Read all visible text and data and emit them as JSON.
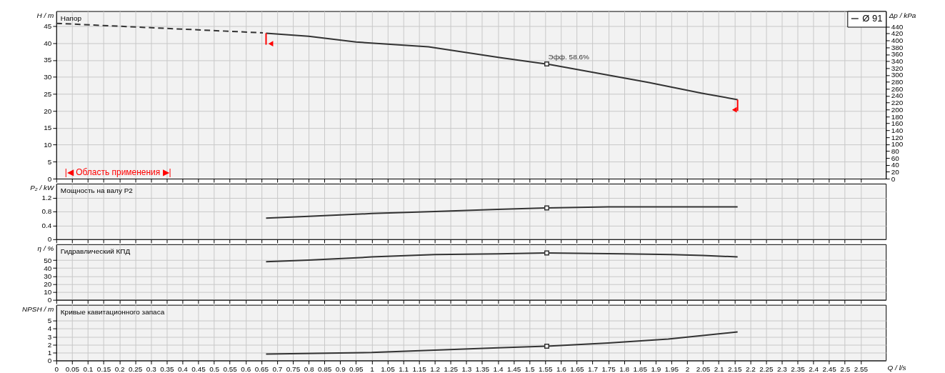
{
  "chart_data": [
    {
      "type": "line",
      "title": "Напор",
      "ylabel": "H / m",
      "y2label": "Δp / kPa",
      "xlim": [
        0,
        2.63
      ],
      "ylim": [
        0,
        49.4
      ],
      "y2lim": [
        0,
        485
      ],
      "yticks": [
        0,
        5,
        10,
        15,
        20,
        25,
        30,
        35,
        40,
        45
      ],
      "y2ticks": [
        0,
        20,
        40,
        60,
        80,
        100,
        120,
        140,
        160,
        180,
        200,
        220,
        240,
        260,
        280,
        300,
        320,
        340,
        360,
        380,
        400,
        420,
        440
      ],
      "xticks": [
        0,
        0.05,
        0.1,
        0.15,
        0.2,
        0.25,
        0.3,
        0.35,
        0.4,
        0.45,
        0.5,
        0.55,
        0.6,
        0.65,
        0.7,
        0.75,
        0.8,
        0.85,
        0.9,
        0.95,
        1,
        1.05,
        1.1,
        1.15,
        1.2,
        1.25,
        1.3,
        1.35,
        1.4,
        1.45,
        1.5,
        1.55,
        1.6,
        1.65,
        1.7,
        1.75,
        1.8,
        1.85,
        1.9,
        1.95,
        2,
        2.05,
        2.1,
        2.15,
        2.2,
        2.25,
        2.3,
        2.35,
        2.4,
        2.45,
        2.5,
        2.55
      ],
      "tick_labels": "y",
      "grid": true,
      "legend": "top right",
      "series": [
        {
          "name": "Ø 91",
          "color": "#333333",
          "x": [
            0.665,
            0.8,
            0.95,
            1.18,
            1.405,
            1.555,
            1.876,
            2.047,
            2.16
          ],
          "values": [
            42.9,
            42.0,
            40.3,
            38.9,
            35.7,
            33.8,
            28.4,
            25.2,
            23.3
          ]
        },
        {
          "color": "#333333",
          "line_style": "dashed",
          "x": [
            0,
            0.35,
            0.655
          ],
          "values": [
            45.8,
            44.3,
            43.0
          ]
        },
        {
          "type": "scatter",
          "marker": "square",
          "color": "#333333",
          "x": [
            1.555
          ],
          "values": [
            33.8
          ]
        },
        {
          "color": "#ff0000",
          "x": [
            0.665,
            0.665
          ],
          "values": [
            42.9,
            39.5
          ]
        },
        {
          "color": "#ff0000",
          "x": [
            2.16,
            2.16
          ],
          "values": [
            23.3,
            20.0
          ]
        },
        {
          "type": "scatter",
          "marker": "triangle",
          "color": "#ff0000",
          "x": [
            0.68,
            2.15
          ],
          "values": [
            39.8,
            20.3
          ]
        }
      ],
      "annotations": [
        {
          "text": "Эфф. 58.6%",
          "x": 1.555,
          "y": 33.8
        },
        "|◀ Область применения ▶|"
      ]
    },
    {
      "type": "line",
      "title": "Мощность на валу P2",
      "ylabel": "P₂ / kW",
      "xlim": [
        0,
        2.63
      ],
      "ylim": [
        0,
        1.6
      ],
      "yticks": [
        0,
        0.4,
        0.8,
        1.2
      ],
      "xticks": [
        0,
        0.05,
        0.1,
        0.15,
        0.2,
        0.25,
        0.3,
        0.35,
        0.4,
        0.45,
        0.5,
        0.55,
        0.6,
        0.65,
        0.7,
        0.75,
        0.8,
        0.85,
        0.9,
        0.95,
        1,
        1.05,
        1.1,
        1.15,
        1.2,
        1.25,
        1.3,
        1.35,
        1.4,
        1.45,
        1.5,
        1.55,
        1.6,
        1.65,
        1.7,
        1.75,
        1.8,
        1.85,
        1.9,
        1.95,
        2,
        2.05,
        2.1,
        2.15,
        2.2,
        2.25,
        2.3,
        2.35,
        2.4,
        2.45,
        2.5,
        2.55
      ],
      "tick_labels": "y",
      "grid": true,
      "series": [
        {
          "color": "#333333",
          "x": [
            0.665,
            0.8,
            1.0,
            1.2,
            1.4,
            1.555,
            1.75,
            2.16
          ],
          "values": [
            0.61,
            0.66,
            0.74,
            0.8,
            0.86,
            0.9,
            0.93,
            0.93
          ]
        },
        {
          "type": "scatter",
          "marker": "square",
          "color": "#333333",
          "x": [
            1.555
          ],
          "values": [
            0.9
          ]
        }
      ]
    },
    {
      "type": "line",
      "title": "Гидравлический КПД",
      "ylabel": "η / %",
      "xlim": [
        0,
        2.63
      ],
      "ylim": [
        0,
        70
      ],
      "yticks": [
        0,
        10,
        20,
        30,
        40,
        50
      ],
      "xticks": [
        0,
        0.05,
        0.1,
        0.15,
        0.2,
        0.25,
        0.3,
        0.35,
        0.4,
        0.45,
        0.5,
        0.55,
        0.6,
        0.65,
        0.7,
        0.75,
        0.8,
        0.85,
        0.9,
        0.95,
        1,
        1.05,
        1.1,
        1.15,
        1.2,
        1.25,
        1.3,
        1.35,
        1.4,
        1.45,
        1.5,
        1.55,
        1.6,
        1.65,
        1.7,
        1.75,
        1.8,
        1.85,
        1.9,
        1.95,
        2,
        2.05,
        2.1,
        2.15,
        2.2,
        2.25,
        2.3,
        2.35,
        2.4,
        2.45,
        2.5,
        2.55
      ],
      "tick_labels": "y",
      "grid": true,
      "series": [
        {
          "color": "#333333",
          "x": [
            0.665,
            0.8,
            1.0,
            1.2,
            1.4,
            1.555,
            1.8,
            1.95,
            2.05,
            2.16
          ],
          "values": [
            48,
            50,
            54,
            57,
            58,
            59,
            58,
            57,
            56,
            54
          ]
        },
        {
          "type": "scatter",
          "marker": "square",
          "color": "#333333",
          "x": [
            1.555
          ],
          "values": [
            59
          ]
        }
      ]
    },
    {
      "type": "line",
      "title": "Кривые кавитационного запаса",
      "ylabel": "NPSH / m",
      "xlabel": "Q / l/s",
      "xlim": [
        0,
        2.63
      ],
      "ylim": [
        0,
        7
      ],
      "yticks": [
        0,
        1,
        2,
        3,
        4,
        5
      ],
      "xticks": [
        0,
        0.05,
        0.1,
        0.15,
        0.2,
        0.25,
        0.3,
        0.35,
        0.4,
        0.45,
        0.5,
        0.55,
        0.6,
        0.65,
        0.7,
        0.75,
        0.8,
        0.85,
        0.9,
        0.95,
        1,
        1.05,
        1.1,
        1.15,
        1.2,
        1.25,
        1.3,
        1.35,
        1.4,
        1.45,
        1.5,
        1.55,
        1.6,
        1.65,
        1.7,
        1.75,
        1.8,
        1.85,
        1.9,
        1.95,
        2,
        2.05,
        2.1,
        2.15,
        2.2,
        2.25,
        2.3,
        2.35,
        2.4,
        2.45,
        2.5,
        2.55
      ],
      "grid": true,
      "series": [
        {
          "color": "#333333",
          "x": [
            0.665,
            0.82,
            1.0,
            1.2,
            1.4,
            1.555,
            1.75,
            1.94,
            2.16
          ],
          "values": [
            0.8,
            0.9,
            1.0,
            1.3,
            1.6,
            1.8,
            2.2,
            2.7,
            3.6
          ]
        },
        {
          "type": "scatter",
          "marker": "square",
          "color": "#333333",
          "x": [
            1.555
          ],
          "values": [
            1.8
          ]
        }
      ]
    }
  ]
}
